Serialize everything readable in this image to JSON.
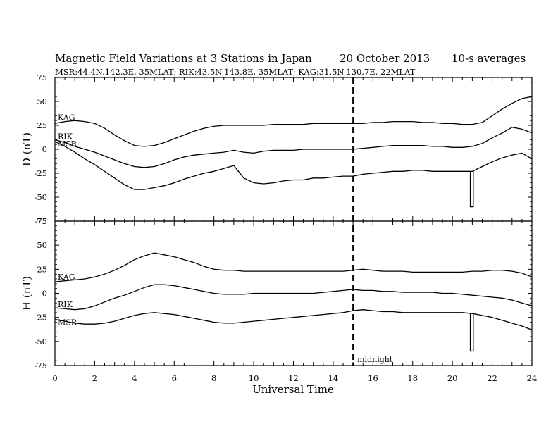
{
  "figure": {
    "title": "Magnetic Field Variations at 3 Stations in Japan",
    "date": "20 October 2013",
    "averaging": "10-s averages",
    "subtitle": "MSR:44.4N,142.3E, 35MLAT;  RIK:43.5N,143.8E, 35MLAT;  KAG:31.5N,130.7E, 22MLAT",
    "xlabel": "Universal Time",
    "midnight_label": "midnight",
    "midnight_ut": 15
  },
  "chart_data": [
    {
      "type": "line",
      "panel": "D",
      "ylabel": "D (nT)",
      "ylim": [
        -75,
        75
      ],
      "yticks": [
        -75,
        -50,
        -25,
        0,
        25,
        50,
        75
      ],
      "xlim": [
        0,
        24
      ],
      "xticks": [
        0,
        2,
        4,
        6,
        8,
        10,
        12,
        14,
        16,
        18,
        20,
        22,
        24
      ],
      "x": [
        0,
        0.5,
        1,
        1.5,
        2,
        2.5,
        3,
        3.5,
        4,
        4.5,
        5,
        5.5,
        6,
        6.5,
        7,
        7.5,
        8,
        8.5,
        9,
        9.5,
        10,
        10.5,
        11,
        11.5,
        12,
        12.5,
        13,
        13.5,
        14,
        14.5,
        15,
        15.5,
        16,
        16.5,
        17,
        17.5,
        18,
        18.5,
        19,
        19.5,
        20,
        20.5,
        21,
        21.5,
        22,
        22.5,
        23,
        23.5,
        24
      ],
      "series": [
        {
          "name": "KAG",
          "values": [
            27,
            29,
            30,
            29,
            27,
            22,
            15,
            9,
            4,
            3,
            4,
            7,
            11,
            15,
            19,
            22,
            24,
            25,
            25,
            25,
            25,
            25,
            26,
            26,
            26,
            26,
            27,
            27,
            27,
            27,
            27,
            27,
            28,
            28,
            29,
            29,
            29,
            28,
            28,
            27,
            27,
            26,
            26,
            28,
            35,
            42,
            48,
            53,
            55
          ]
        },
        {
          "name": "RIK",
          "values": [
            10,
            7,
            3,
            0,
            -3,
            -7,
            -11,
            -15,
            -18,
            -19,
            -18,
            -15,
            -11,
            -8,
            -6,
            -5,
            -4,
            -3,
            -1,
            -3,
            -4,
            -2,
            -1,
            -1,
            -1,
            0,
            0,
            0,
            0,
            0,
            0,
            1,
            2,
            3,
            4,
            4,
            4,
            4,
            3,
            3,
            2,
            2,
            3,
            6,
            12,
            17,
            23,
            21,
            17
          ]
        },
        {
          "name": "MSR",
          "values": [
            8,
            3,
            -3,
            -10,
            -16,
            -23,
            -30,
            -37,
            -42,
            -42,
            -40,
            -38,
            -35,
            -31,
            -28,
            -25,
            -23,
            -20,
            -17,
            -30,
            -35,
            -36,
            -35,
            -33,
            -32,
            -32,
            -30,
            -30,
            -29,
            -28,
            -28,
            -26,
            -25,
            -24,
            -23,
            -23,
            -22,
            -22,
            -23,
            -23,
            -23,
            -23,
            -23,
            -18,
            -13,
            -9,
            -6,
            -4,
            -10
          ]
        }
      ],
      "spikes": [
        {
          "series": "MSR",
          "x": [
            20.9,
            21.05
          ],
          "to": -60
        }
      ]
    },
    {
      "type": "line",
      "panel": "H",
      "ylabel": "H (nT)",
      "ylim": [
        -75,
        75
      ],
      "yticks": [
        -75,
        -50,
        -25,
        0,
        25,
        50,
        75
      ],
      "xlim": [
        0,
        24
      ],
      "xticks": [
        0,
        2,
        4,
        6,
        8,
        10,
        12,
        14,
        16,
        18,
        20,
        22,
        24
      ],
      "x": [
        0,
        0.5,
        1,
        1.5,
        2,
        2.5,
        3,
        3.5,
        4,
        4.5,
        5,
        5.5,
        6,
        6.5,
        7,
        7.5,
        8,
        8.5,
        9,
        9.5,
        10,
        10.5,
        11,
        11.5,
        12,
        12.5,
        13,
        13.5,
        14,
        14.5,
        15,
        15.5,
        16,
        16.5,
        17,
        17.5,
        18,
        18.5,
        19,
        19.5,
        20,
        20.5,
        21,
        21.5,
        22,
        22.5,
        23,
        23.5,
        24
      ],
      "series": [
        {
          "name": "KAG",
          "values": [
            12,
            13,
            14,
            15,
            17,
            20,
            24,
            29,
            35,
            39,
            42,
            40,
            38,
            35,
            32,
            28,
            25,
            24,
            24,
            23,
            23,
            23,
            23,
            23,
            23,
            23,
            23,
            23,
            23,
            23,
            24,
            25,
            24,
            23,
            23,
            23,
            22,
            22,
            22,
            22,
            22,
            22,
            23,
            23,
            24,
            24,
            23,
            21,
            17
          ]
        },
        {
          "name": "RIK",
          "values": [
            -15,
            -16,
            -17,
            -16,
            -13,
            -9,
            -5,
            -2,
            2,
            6,
            9,
            9,
            8,
            6,
            4,
            2,
            0,
            -1,
            -1,
            -1,
            0,
            0,
            0,
            0,
            0,
            0,
            0,
            1,
            2,
            3,
            4,
            3,
            3,
            2,
            2,
            1,
            1,
            1,
            1,
            0,
            0,
            -1,
            -2,
            -3,
            -4,
            -5,
            -7,
            -10,
            -13
          ]
        },
        {
          "name": "MSR",
          "values": [
            -27,
            -29,
            -31,
            -32,
            -32,
            -31,
            -29,
            -26,
            -23,
            -21,
            -20,
            -21,
            -22,
            -24,
            -26,
            -28,
            -30,
            -31,
            -31,
            -30,
            -29,
            -28,
            -27,
            -26,
            -25,
            -24,
            -23,
            -22,
            -21,
            -20,
            -18,
            -17,
            -18,
            -19,
            -19,
            -20,
            -20,
            -20,
            -20,
            -20,
            -20,
            -20,
            -21,
            -23,
            -25,
            -28,
            -31,
            -34,
            -38
          ]
        }
      ],
      "spikes": [
        {
          "series": "MSR",
          "x": [
            20.9,
            21.05
          ],
          "to": -60
        }
      ]
    }
  ]
}
